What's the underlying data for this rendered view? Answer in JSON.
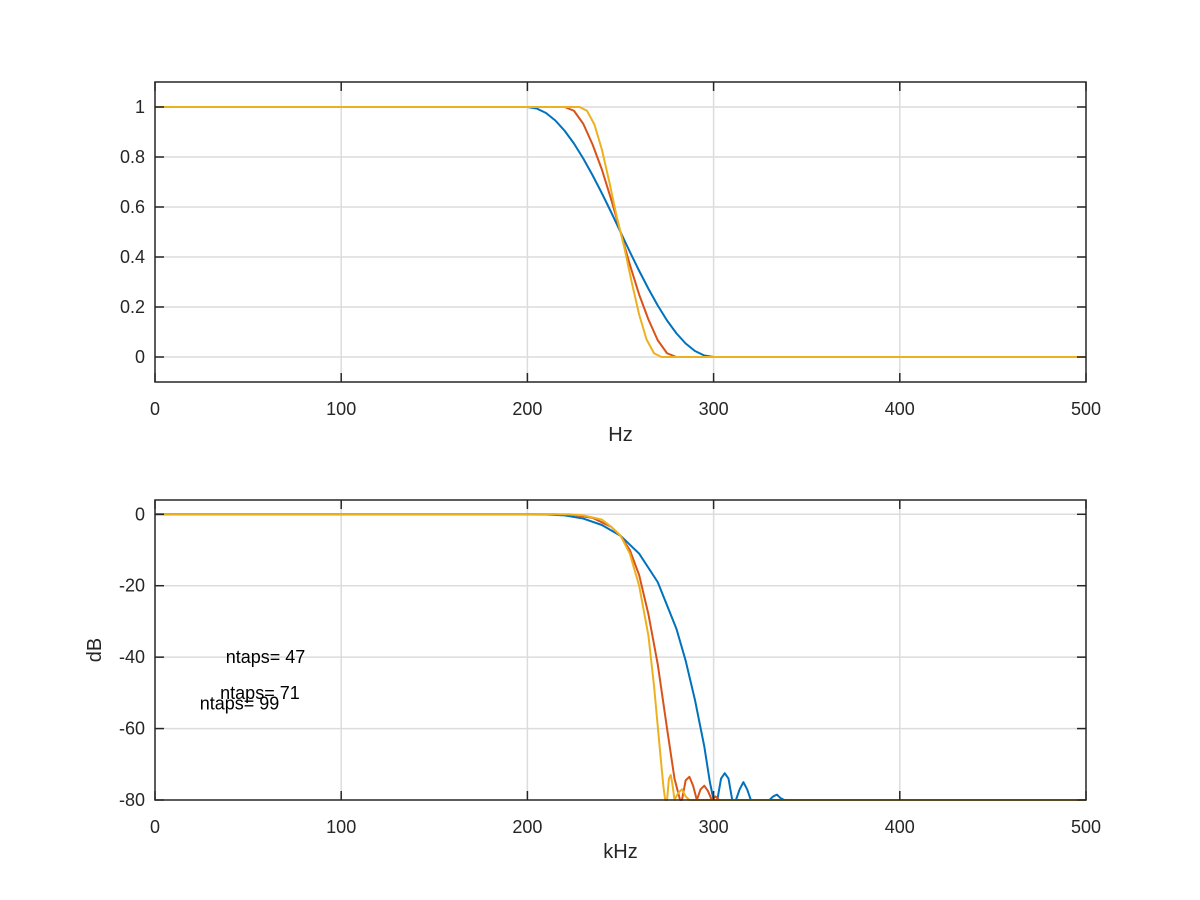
{
  "chart_data": [
    {
      "type": "line",
      "xlabel": "Hz",
      "ylabel": "",
      "xlim": [
        0,
        500
      ],
      "ylim": [
        -0.1,
        1.1
      ],
      "xticks": [
        "0",
        "100",
        "200",
        "300",
        "400",
        "500"
      ],
      "yticks": [
        "0",
        "0.2",
        "0.4",
        "0.6",
        "0.8",
        "1"
      ],
      "grid": true,
      "series": [
        {
          "color": "#0072BD",
          "x": [
            0,
            200,
            205,
            210,
            215,
            220,
            225,
            230,
            235,
            240,
            245,
            250,
            255,
            260,
            265,
            270,
            275,
            280,
            285,
            290,
            295,
            300,
            500
          ],
          "y": [
            1,
            1,
            0.994,
            0.976,
            0.946,
            0.905,
            0.854,
            0.794,
            0.727,
            0.655,
            0.579,
            0.5,
            0.421,
            0.345,
            0.273,
            0.206,
            0.146,
            0.095,
            0.054,
            0.024,
            0.006,
            0,
            0
          ]
        },
        {
          "color": "#D95319",
          "x": [
            0,
            220,
            225,
            230,
            235,
            240,
            245,
            250,
            255,
            260,
            265,
            270,
            275,
            280,
            500
          ],
          "y": [
            1,
            1,
            0.985,
            0.933,
            0.85,
            0.75,
            0.63,
            0.5,
            0.37,
            0.25,
            0.15,
            0.067,
            0.015,
            0,
            0
          ]
        },
        {
          "color": "#EDB120",
          "x": [
            0,
            228,
            232,
            236,
            240,
            244,
            248,
            250,
            252,
            256,
            260,
            264,
            268,
            272,
            500
          ],
          "y": [
            1,
            1,
            0.985,
            0.93,
            0.83,
            0.7,
            0.56,
            0.5,
            0.44,
            0.3,
            0.17,
            0.07,
            0.015,
            0,
            0
          ]
        }
      ]
    },
    {
      "type": "line",
      "xlabel": "kHz",
      "ylabel": "dB",
      "xlim": [
        0,
        500
      ],
      "ylim": [
        -80,
        4
      ],
      "xticks": [
        "0",
        "100",
        "200",
        "300",
        "400",
        "500"
      ],
      "yticks": [
        "0",
        "-20",
        "-40",
        "-60",
        "-80"
      ],
      "grid": true,
      "annotations": [
        {
          "text": "ntaps= 47",
          "x": 38,
          "y": -40
        },
        {
          "text": "ntaps= 71",
          "x": 35,
          "y": -50
        },
        {
          "text": "ntaps= 99",
          "x": 24,
          "y": -53
        }
      ],
      "series": [
        {
          "color": "#0072BD",
          "x": [
            0,
            200,
            210,
            220,
            230,
            240,
            250,
            260,
            270,
            280,
            285,
            290,
            295,
            298,
            300,
            302,
            304,
            306,
            308,
            310,
            312,
            314,
            316,
            318,
            320,
            322,
            324,
            326,
            328,
            330,
            332,
            334,
            336,
            338,
            500
          ],
          "y": [
            0,
            0,
            -0.05,
            -0.3,
            -1.2,
            -3,
            -6,
            -11,
            -19,
            -32,
            -41,
            -52,
            -65,
            -75,
            -80,
            -80,
            -74,
            -72.5,
            -74,
            -80,
            -80,
            -77,
            -75,
            -77,
            -80,
            -80,
            -80,
            -80,
            -80,
            -80,
            -79,
            -78.5,
            -79.5,
            -80,
            -80
          ]
        },
        {
          "color": "#D95319",
          "x": [
            0,
            215,
            225,
            235,
            245,
            250,
            255,
            260,
            265,
            270,
            275,
            279,
            282,
            283,
            285,
            287,
            289,
            291,
            293,
            295,
            297,
            299,
            301,
            303,
            500
          ],
          "y": [
            0,
            0,
            -0.2,
            -1,
            -3.5,
            -6,
            -10,
            -17,
            -28,
            -42,
            -60,
            -74,
            -80,
            -80,
            -74.5,
            -73.5,
            -76,
            -80,
            -77,
            -76,
            -77.5,
            -80,
            -79,
            -80,
            -80
          ]
        },
        {
          "color": "#EDB120",
          "x": [
            0,
            222,
            230,
            240,
            245,
            250,
            255,
            260,
            265,
            268,
            271,
            273,
            274,
            275,
            276,
            277,
            278,
            279,
            281,
            283,
            285,
            287,
            500
          ],
          "y": [
            0,
            0,
            -0.3,
            -1.5,
            -3.5,
            -6,
            -11,
            -20,
            -34,
            -48,
            -65,
            -76,
            -80,
            -80,
            -74,
            -73,
            -76,
            -80,
            -78,
            -77,
            -79,
            -80,
            -80
          ]
        }
      ]
    }
  ]
}
